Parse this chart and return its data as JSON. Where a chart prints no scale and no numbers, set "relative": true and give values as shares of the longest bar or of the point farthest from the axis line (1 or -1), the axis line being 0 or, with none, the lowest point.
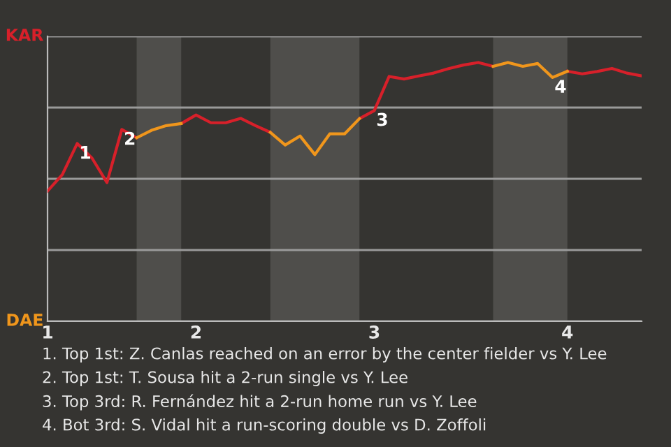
{
  "chart_data": {
    "type": "line",
    "relative": true,
    "categories": [
      "1",
      null,
      null,
      null,
      null,
      null,
      null,
      null,
      null,
      null,
      "2",
      null,
      null,
      null,
      null,
      null,
      null,
      null,
      null,
      null,
      null,
      null,
      "3",
      null,
      null,
      null,
      null,
      null,
      null,
      null,
      null,
      null,
      null,
      null,
      null,
      "4",
      null,
      null,
      null,
      null,
      null
    ],
    "series": [
      {
        "color": "#d7202a",
        "values": [
          0.503,
          0.567,
          0.687,
          0.63,
          0.536,
          0.741,
          0.709,
          null,
          null,
          0.764,
          0.797,
          0.767,
          0.767,
          0.784,
          0.756,
          0.73,
          null,
          null,
          null,
          null,
          null,
          0.783,
          0.814,
          0.946,
          0.936,
          0.948,
          0.959,
          0.976,
          0.99,
          1,
          0.985,
          null,
          null,
          null,
          null,
          0.966,
          0.956,
          0.965,
          0.977,
          0.959,
          0.948
        ]
      },
      {
        "color": "#f0961c",
        "values": [
          null,
          null,
          null,
          null,
          null,
          null,
          0.709,
          0.738,
          0.756,
          0.764,
          null,
          null,
          null,
          null,
          null,
          0.73,
          0.681,
          0.716,
          0.644,
          0.724,
          0.724,
          0.783,
          null,
          null,
          null,
          null,
          null,
          null,
          null,
          null,
          0.985,
          1,
          0.985,
          0.996,
          0.942,
          0.966,
          null,
          null,
          null,
          null,
          null
        ]
      }
    ],
    "ylim": [
      0,
      1.101
    ],
    "grid": "y",
    "legend": false,
    "annotations": [
      "KAR",
      "DAE",
      {
        "text": "1",
        "y": 0.687
      },
      {
        "text": "2",
        "y": 0.741
      },
      {
        "text": "3",
        "y": 0.814
      },
      {
        "text": "4",
        "y": 0.942
      },
      "1. Top 1st: Z. Canlas reached on an error by the center fielder vs Y. Lee",
      "2. Top 1st: T. Sousa hit a 2-run single vs Y. Lee",
      "3. Top 3rd: R. Fernández hit a 2-run home run vs Y. Lee",
      "4. Bot 3rd: S. Vidal hit a run-scoring double vs D. Zoffoli"
    ]
  }
}
